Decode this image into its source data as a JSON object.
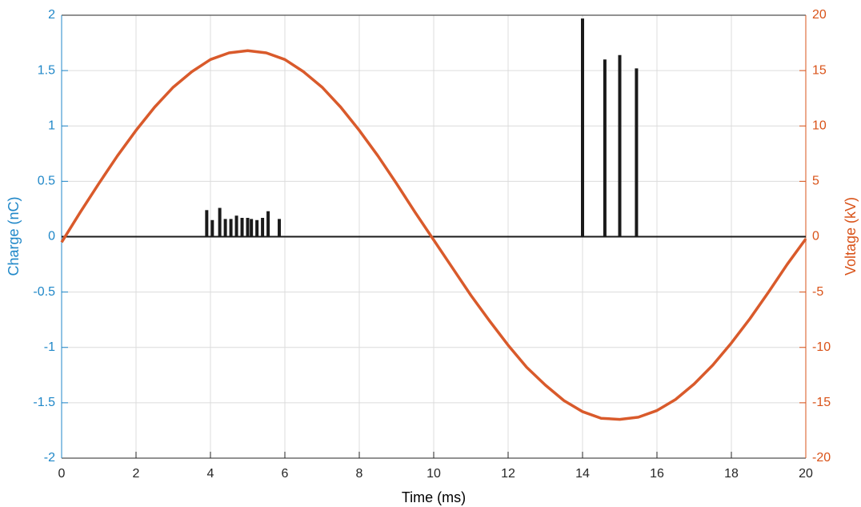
{
  "chart_data": {
    "type": "combo",
    "xlabel": "Time (ms)",
    "ylabel": "Charge (nC)",
    "y2label": "Voltage (kV)",
    "xlim": [
      0,
      20
    ],
    "xticks": [
      0,
      2,
      4,
      6,
      8,
      10,
      12,
      14,
      16,
      18,
      20
    ],
    "ylim": [
      -2,
      2
    ],
    "yticks": [
      -2,
      -1.5,
      -1,
      -0.5,
      0,
      0.5,
      1,
      1.5,
      2
    ],
    "y2lim": [
      -20,
      20
    ],
    "y2ticks": [
      -20,
      -15,
      -10,
      -5,
      0,
      5,
      10,
      15,
      20
    ],
    "ycolor": "#1f87c8",
    "y2color": "#d95319",
    "grid": true,
    "series": [
      {
        "type": "stem",
        "color": "#1a1a1a",
        "x": [
          3.9,
          4.05,
          4.25,
          4.4,
          4.55,
          4.7,
          4.85,
          5.0,
          5.1,
          5.25,
          5.4,
          5.55,
          5.85,
          14.0,
          14.6,
          15.0,
          15.45
        ],
        "values": [
          0.24,
          0.15,
          0.26,
          0.16,
          0.16,
          0.19,
          0.17,
          0.17,
          0.16,
          0.15,
          0.17,
          0.23,
          0.16,
          1.97,
          1.6,
          1.64,
          1.52
        ]
      },
      {
        "type": "line",
        "axis": "y2",
        "color": "#d95a2b",
        "x": [
          0,
          0.5,
          1,
          1.5,
          2,
          2.5,
          3,
          3.5,
          4,
          4.5,
          5,
          5.5,
          6,
          6.5,
          7,
          7.5,
          8,
          8.5,
          9,
          9.5,
          10,
          10.5,
          11,
          11.5,
          12,
          12.5,
          13,
          13.5,
          14,
          14.5,
          15,
          15.5,
          16,
          16.5,
          17,
          17.5,
          18,
          18.5,
          19,
          19.5,
          20
        ],
        "values": [
          -0.5,
          2.2,
          4.8,
          7.3,
          9.6,
          11.7,
          13.5,
          14.9,
          16.0,
          16.6,
          16.8,
          16.6,
          16.0,
          14.9,
          13.5,
          11.7,
          9.6,
          7.3,
          4.8,
          2.2,
          -0.3,
          -2.8,
          -5.3,
          -7.6,
          -9.8,
          -11.8,
          -13.4,
          -14.8,
          -15.8,
          -16.4,
          -16.5,
          -16.3,
          -15.7,
          -14.7,
          -13.3,
          -11.6,
          -9.6,
          -7.4,
          -5.0,
          -2.5,
          -0.2
        ]
      }
    ]
  }
}
